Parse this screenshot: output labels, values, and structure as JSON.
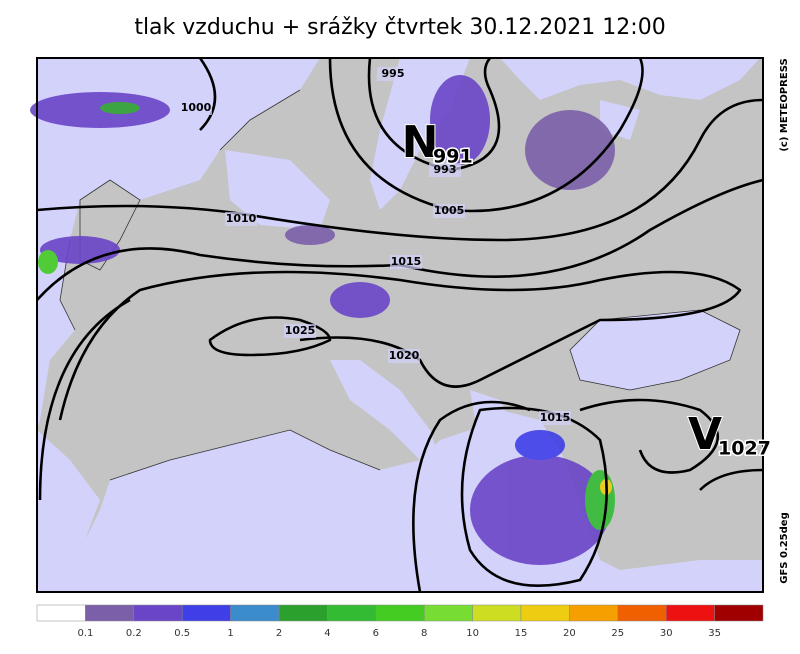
{
  "header": {
    "title": "tlak vzduchu + srážky čtvrtek 30.12.2021 12:00"
  },
  "side": {
    "copyright": "(c)  METEOPRESS",
    "model": "GFS  0.25deg"
  },
  "centers": [
    {
      "letter": "N",
      "value": 991
    },
    {
      "letter": "V",
      "value": 1027
    }
  ],
  "isobar_labels": [
    995,
    1000,
    993,
    1005,
    1010,
    1015,
    1025,
    1020,
    1015
  ],
  "legend": {
    "ticks": [
      0.1,
      0.2,
      0.5,
      1,
      2,
      4,
      6,
      8,
      10,
      15,
      20,
      25,
      30,
      35
    ],
    "colors": [
      "#ffffff",
      "#7b5fa8",
      "#6a45c8",
      "#3f3fe8",
      "#3a8ccc",
      "#2ca02c",
      "#33bb33",
      "#44cc22",
      "#77dd33",
      "#ccdd22",
      "#eecc11",
      "#f5a000",
      "#f06000",
      "#ee1111",
      "#a00000"
    ]
  }
}
